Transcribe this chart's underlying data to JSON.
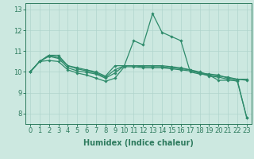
{
  "xlabel": "Humidex (Indice chaleur)",
  "x": [
    0,
    1,
    2,
    3,
    4,
    5,
    6,
    7,
    8,
    9,
    10,
    11,
    12,
    13,
    14,
    15,
    16,
    17,
    18,
    19,
    20,
    21,
    22,
    23
  ],
  "series": [
    {
      "y": [
        10.0,
        10.5,
        10.8,
        10.8,
        10.3,
        10.2,
        10.1,
        10.0,
        9.8,
        10.3,
        10.3,
        11.5,
        11.3,
        12.8,
        11.9,
        11.7,
        11.5,
        10.0,
        9.9,
        9.85,
        9.6,
        9.6,
        9.6,
        7.8
      ],
      "color": "#2e8b6b",
      "linewidth": 0.9,
      "marker": "D",
      "markersize": 1.8
    },
    {
      "y": [
        10.0,
        10.5,
        10.8,
        10.7,
        10.3,
        10.15,
        10.05,
        9.95,
        9.75,
        10.1,
        10.3,
        10.3,
        10.3,
        10.3,
        10.3,
        10.25,
        10.2,
        10.1,
        9.95,
        9.9,
        9.85,
        9.7,
        9.65,
        9.65
      ],
      "color": "#2e8b6b",
      "linewidth": 0.9,
      "marker": "D",
      "markersize": 1.8
    },
    {
      "y": [
        10.0,
        10.5,
        10.75,
        10.65,
        10.2,
        10.05,
        9.98,
        9.9,
        9.7,
        9.95,
        10.3,
        10.3,
        10.25,
        10.25,
        10.25,
        10.2,
        10.15,
        10.1,
        10.0,
        9.85,
        9.8,
        9.75,
        9.65,
        9.6
      ],
      "color": "#2e8b6b",
      "linewidth": 0.9,
      "marker": "D",
      "markersize": 1.8
    },
    {
      "y": [
        10.0,
        10.5,
        10.55,
        10.5,
        10.1,
        9.95,
        9.85,
        9.7,
        9.55,
        9.7,
        10.25,
        10.25,
        10.2,
        10.2,
        10.2,
        10.15,
        10.1,
        10.05,
        9.95,
        9.8,
        9.75,
        9.65,
        9.55,
        7.8
      ],
      "color": "#2e8b6b",
      "linewidth": 0.9,
      "marker": "D",
      "markersize": 1.8
    }
  ],
  "ylim": [
    7.5,
    13.3
  ],
  "yticks": [
    8,
    9,
    10,
    11,
    12,
    13
  ],
  "xticks": [
    0,
    1,
    2,
    3,
    4,
    5,
    6,
    7,
    8,
    9,
    10,
    11,
    12,
    13,
    14,
    15,
    16,
    17,
    18,
    19,
    20,
    21,
    22,
    23
  ],
  "background_color": "#cce8e0",
  "grid_color": "#b0d4cc",
  "axis_color": "#2e7b5e",
  "label_color": "#2e7b5e",
  "tick_color": "#2e7b5e",
  "xlabel_fontsize": 7,
  "tick_fontsize": 6
}
